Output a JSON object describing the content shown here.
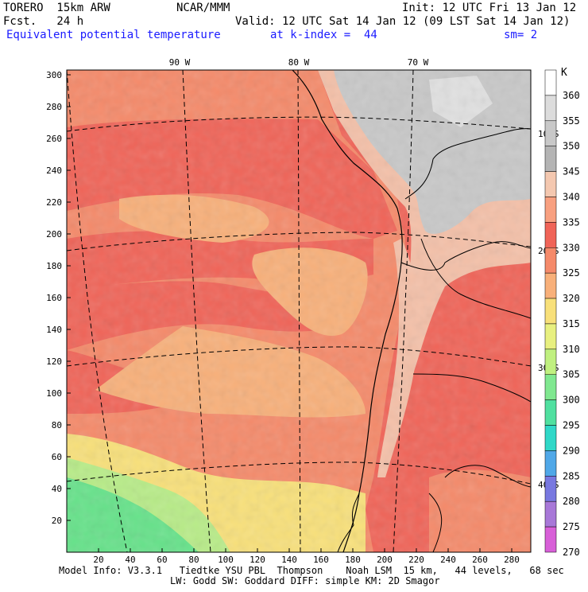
{
  "header": {
    "model": "TORERO  15km ARW",
    "center": "NCAR/MMM",
    "init": "Init: 12 UTC Fri 13 Jan 12",
    "fcst": "Fcst.   24 h",
    "valid": "Valid: 12 UTC Sat 14 Jan 12 (09 LST Sat 14 Jan 12)",
    "field": "Equivalent potential temperature",
    "level": "at k-index =  44",
    "smooth": "sm= 2"
  },
  "map": {
    "lon_labels": [
      "90 W",
      "80 W",
      "70 W"
    ],
    "lat_labels": [
      "10 S",
      "20 S",
      "30 S",
      "40 S"
    ],
    "x_ticks": [
      "20",
      "40",
      "60",
      "80",
      "100",
      "120",
      "140",
      "160",
      "180",
      "200",
      "220",
      "240",
      "260",
      "280"
    ],
    "y_ticks": [
      "20",
      "40",
      "60",
      "80",
      "100",
      "120",
      "140",
      "160",
      "180",
      "200",
      "220",
      "240",
      "260",
      "280",
      "300"
    ],
    "colors": {
      "ocean_warm": "#f06458",
      "ocean_mid": "#f58a6a",
      "ocean_cool": "#f8b07a",
      "south_yellow": "#f8e07a",
      "south_green": "#66e28a",
      "andes": "#c8c8c8",
      "land_peach": "#f4c0a8"
    }
  },
  "colorbar": {
    "unit": "K",
    "levels": [
      "360",
      "355",
      "350",
      "345",
      "340",
      "335",
      "330",
      "325",
      "320",
      "315",
      "310",
      "305",
      "300",
      "295",
      "290",
      "285",
      "280",
      "275",
      "270"
    ],
    "colors": [
      "#ffffff",
      "#dcdcdc",
      "#c8c8c8",
      "#b4b4b4",
      "#f4c8b0",
      "#f8a080",
      "#f06458",
      "#f58a6a",
      "#f8b07a",
      "#f8e07a",
      "#e8f080",
      "#c0f080",
      "#80e890",
      "#50e0a0",
      "#30d8c8",
      "#50a8e8",
      "#7878e0",
      "#a878d8",
      "#d860d8"
    ]
  },
  "footer": {
    "line1": "Model Info: V3.3.1   Tiedtke YSU PBL  Thompson    Noah LSM  15 km,   44 levels,   68 sec",
    "line2": "LW: Godd SW: Goddard DIFF: simple KM: 2D Smagor"
  }
}
